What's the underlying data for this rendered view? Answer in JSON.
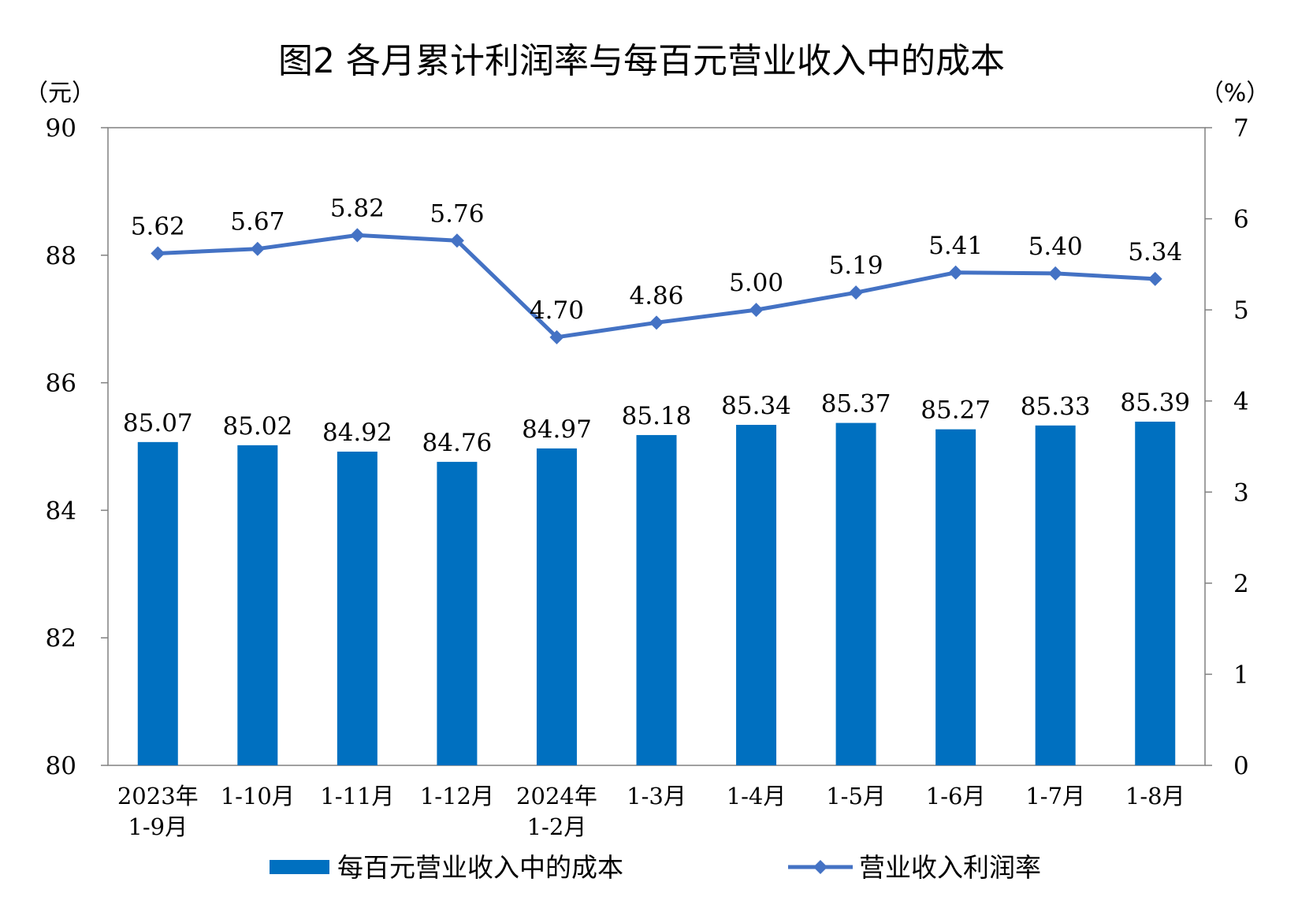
{
  "chart_data": {
    "type": "bar",
    "title": "图2  各月累计利润率与每百元营业收入中的成本",
    "y_left_unit": "（元）",
    "y_right_unit": "（%）",
    "y_left_lim": [
      80,
      90
    ],
    "y_left_ticks": [
      "80",
      "82",
      "84",
      "86",
      "88",
      "90"
    ],
    "y_right_lim": [
      0,
      7
    ],
    "y_right_ticks": [
      "0",
      "1",
      "2",
      "3",
      "4",
      "5",
      "6",
      "7"
    ],
    "categories": [
      [
        "2023年",
        "1-9月"
      ],
      [
        "1-10月"
      ],
      [
        "1-11月"
      ],
      [
        "1-12月"
      ],
      [
        "2024年",
        "1-2月"
      ],
      [
        "1-3月"
      ],
      [
        "1-4月"
      ],
      [
        "1-5月"
      ],
      [
        "1-6月"
      ],
      [
        "1-7月"
      ],
      [
        "1-8月"
      ]
    ],
    "series": [
      {
        "name": "每百元营业收入中的成本",
        "kind": "bar",
        "axis": "left",
        "color": "#0070C0",
        "values": [
          85.07,
          85.02,
          84.92,
          84.76,
          84.97,
          85.18,
          85.34,
          85.37,
          85.27,
          85.33,
          85.39
        ],
        "labels": [
          "85.07",
          "85.02",
          "84.92",
          "84.76",
          "84.97",
          "85.18",
          "85.34",
          "85.37",
          "85.27",
          "85.33",
          "85.39"
        ]
      },
      {
        "name": "营业收入利润率",
        "kind": "line",
        "axis": "right",
        "color": "#4472C4",
        "marker": "diamond",
        "values": [
          5.62,
          5.67,
          5.82,
          5.76,
          4.7,
          4.86,
          5.0,
          5.19,
          5.41,
          5.4,
          5.34
        ],
        "labels": [
          "5.62",
          "5.67",
          "5.82",
          "5.76",
          "4.70",
          "4.86",
          "5.00",
          "5.19",
          "5.41",
          "5.40",
          "5.34"
        ]
      }
    ],
    "grid": false,
    "legend_position": "bottom"
  }
}
